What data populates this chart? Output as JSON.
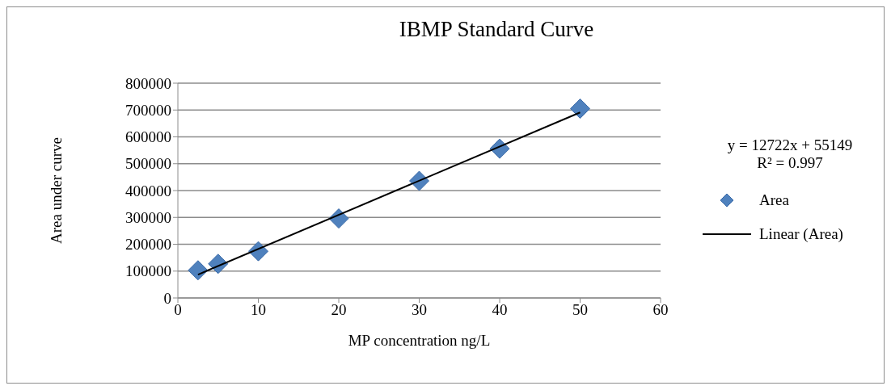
{
  "chart_data": {
    "type": "scatter",
    "title": "IBMP Standard Curve",
    "xlabel": "MP concentration ng/L",
    "ylabel": "Area under curve",
    "annotations": [
      "y = 12722x + 55149",
      "R² = 0.997"
    ],
    "x": [
      2.5,
      5,
      10,
      20,
      30,
      40,
      50
    ],
    "series": [
      {
        "name": "Area",
        "color": "#4f81bd",
        "marker": "diamond",
        "values": [
          103000,
          127000,
          174000,
          296000,
          436000,
          556000,
          705000
        ]
      },
      {
        "name": "Linear (Area)",
        "type": "line",
        "color": "#000000",
        "line_style": "solid",
        "marker": "none",
        "x": [
          2.5,
          50
        ],
        "values": [
          87000,
          691000
        ]
      }
    ],
    "xlim": [
      0,
      60
    ],
    "xticks": [
      0,
      10,
      20,
      30,
      40,
      50,
      60
    ],
    "ylim": [
      0,
      800000
    ],
    "yticks": [
      0,
      100000,
      200000,
      300000,
      400000,
      500000,
      600000,
      700000,
      800000
    ],
    "grid": "y",
    "legend": "right"
  }
}
